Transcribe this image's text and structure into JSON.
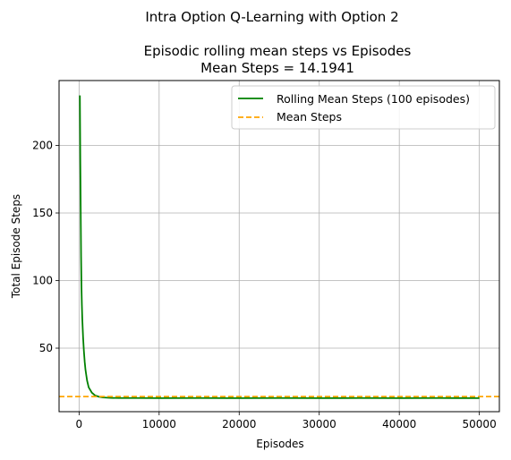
{
  "chart_data": {
    "type": "line",
    "suptitle": "Intra Option Q-Learning with Option 2",
    "title_line1": "Episodic rolling mean steps vs Episodes",
    "title_line2": "Mean Steps = 14.1941",
    "xlabel": "Episodes",
    "ylabel": "Total Episode Steps",
    "xlim": [
      -2500,
      52500
    ],
    "ylim": [
      3,
      248
    ],
    "xticks": [
      0,
      10000,
      20000,
      30000,
      40000,
      50000
    ],
    "xtick_labels": [
      "0",
      "10000",
      "20000",
      "30000",
      "40000",
      "50000"
    ],
    "yticks": [
      50,
      100,
      150,
      200
    ],
    "ytick_labels": [
      "50",
      "100",
      "150",
      "200"
    ],
    "grid": true,
    "legend_position": "top-right",
    "series": [
      {
        "name": "Rolling Mean Steps (100 episodes)",
        "color": "#008000",
        "style": "solid",
        "x": [
          100,
          150,
          200,
          250,
          300,
          350,
          400,
          500,
          600,
          700,
          800,
          900,
          1000,
          1200,
          1400,
          1600,
          1800,
          2000,
          2500,
          3000,
          4000,
          5000,
          7500,
          10000,
          15000,
          20000,
          25000,
          30000,
          35000,
          40000,
          45000,
          50000
        ],
        "y": [
          237,
          190,
          155,
          118,
          95,
          82,
          72,
          58,
          48,
          40,
          34,
          30,
          26,
          21,
          19,
          17,
          16,
          15,
          14,
          13.5,
          13.2,
          13.1,
          13.1,
          13.0,
          13.1,
          13.0,
          13.1,
          13.0,
          13.1,
          13.0,
          13.1,
          13.0
        ]
      },
      {
        "name": "Mean Steps",
        "color": "#FFA500",
        "style": "dashed",
        "value": 14.1941
      }
    ]
  }
}
